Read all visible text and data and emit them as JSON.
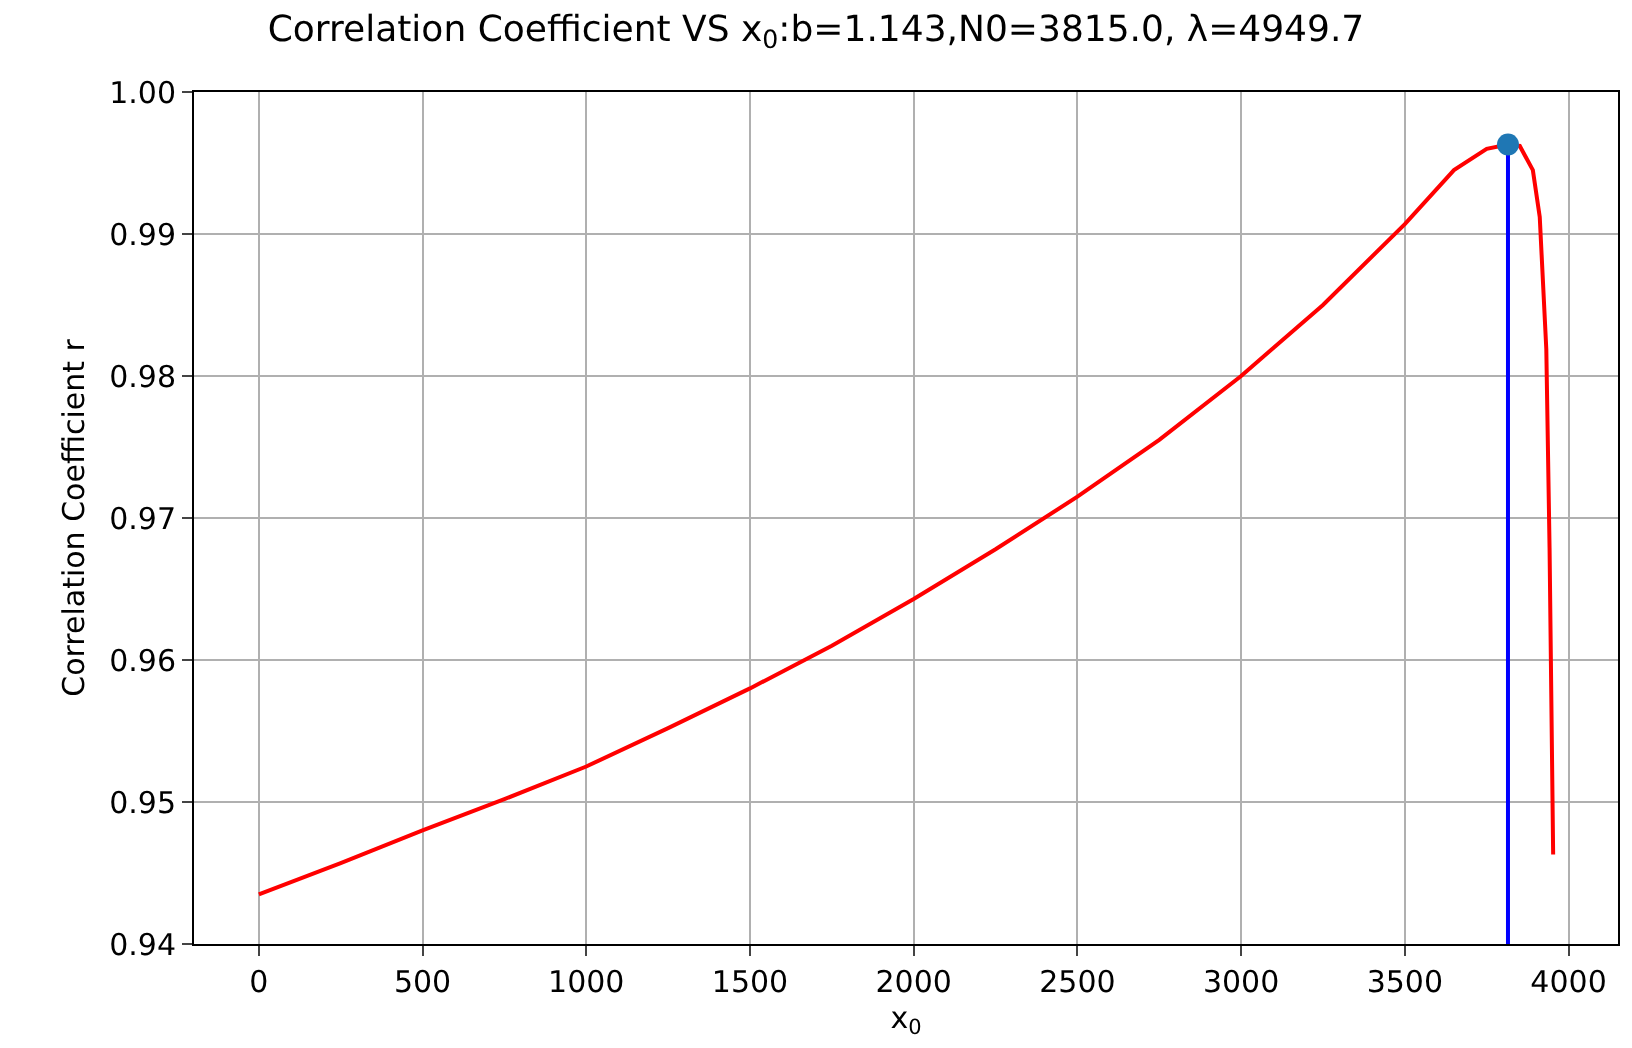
{
  "chart_data": {
    "type": "line",
    "title": "Correlation Coefficient VS x$_{0}$:b=1.143,N0=3815.0, λ=4949.7",
    "xlabel": "x$_{0}$",
    "ylabel": "Correlation Coefficient r",
    "series": [
      {
        "color": "#ff0000",
        "x": [
          0,
          250,
          500,
          750,
          1000,
          1250,
          1500,
          1750,
          2000,
          2250,
          2500,
          2750,
          3000,
          3250,
          3500,
          3650,
          3750,
          3815,
          3851,
          3891,
          3912,
          3932,
          3942,
          3953
        ],
        "values": [
          0.9435,
          0.9457,
          0.948,
          0.9502,
          0.9525,
          0.9552,
          0.958,
          0.961,
          0.9643,
          0.9678,
          0.9715,
          0.9755,
          0.98,
          0.985,
          0.9907,
          0.9945,
          0.996,
          0.9963,
          0.9962,
          0.9945,
          0.9912,
          0.9819,
          0.9679,
          0.9463
        ]
      },
      {
        "color": "#0000ff",
        "x": [
          3815,
          3815
        ],
        "values": [
          0.94,
          0.9963
        ]
      },
      {
        "type": "scatter",
        "color": "#1f77b4",
        "marker": "circle",
        "x": [
          3815
        ],
        "values": [
          0.9963
        ]
      }
    ],
    "xlim": [
      -198,
      4151
    ],
    "xticks": [
      0,
      500,
      1000,
      1500,
      2000,
      2500,
      3000,
      3500,
      4000
    ],
    "ylim": [
      0.94,
      1.0
    ],
    "yticks": [
      {
        "value": 0.94,
        "label": "0.94"
      },
      {
        "value": 0.95,
        "label": "0.95"
      },
      {
        "value": 0.96,
        "label": "0.96"
      },
      {
        "value": 0.97,
        "label": "0.97"
      },
      {
        "value": 0.98,
        "label": "0.98"
      },
      {
        "value": 0.99,
        "label": "0.99"
      },
      {
        "value": 1.0,
        "label": "1.00"
      }
    ],
    "grid": true
  }
}
